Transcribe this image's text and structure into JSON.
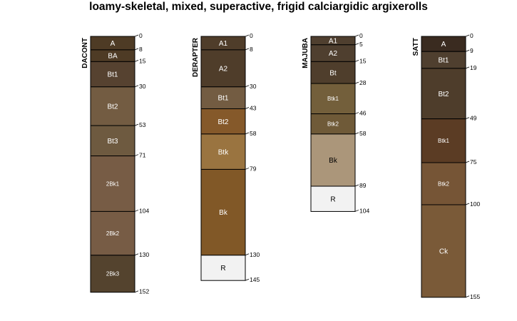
{
  "title": "loamy-skeletal, mixed, superactive, frigid calciargidic argixerolls",
  "profiles": [
    {
      "name": "DACONT",
      "horizons": [
        {
          "name": "A",
          "top": 0,
          "bottom": 8,
          "color": "#4e3b25",
          "label_color": "#ffffff"
        },
        {
          "name": "BA",
          "top": 8,
          "bottom": 15,
          "color": "#4e3b25",
          "label_color": "#ffffff"
        },
        {
          "name": "Bt1",
          "top": 15,
          "bottom": 30,
          "color": "#564230",
          "label_color": "#ffffff"
        },
        {
          "name": "Bt2",
          "top": 30,
          "bottom": 53,
          "color": "#735c42",
          "label_color": "#ffffff"
        },
        {
          "name": "Bt3",
          "top": 53,
          "bottom": 71,
          "color": "#6e5a40",
          "label_color": "#ffffff"
        },
        {
          "name": "2Bk1",
          "top": 71,
          "bottom": 104,
          "color": "#775c45",
          "label_color": "#ffffff"
        },
        {
          "name": "2Bk2",
          "top": 104,
          "bottom": 130,
          "color": "#775c45",
          "label_color": "#ffffff"
        },
        {
          "name": "2Bk3",
          "top": 130,
          "bottom": 152,
          "color": "#54432e",
          "label_color": "#ffffff"
        }
      ],
      "depth_labels": [
        "0",
        "8",
        "15",
        "30",
        "53",
        "71",
        "104",
        "130",
        "152"
      ]
    },
    {
      "name": "DERAPTER",
      "horizons": [
        {
          "name": "A1",
          "top": 0,
          "bottom": 8,
          "color": "#4f3d2a",
          "label_color": "#ffffff"
        },
        {
          "name": "A2",
          "top": 8,
          "bottom": 30,
          "color": "#4f3d2a",
          "label_color": "#ffffff"
        },
        {
          "name": "Bt1",
          "top": 30,
          "bottom": 43,
          "color": "#735c42",
          "label_color": "#ffffff"
        },
        {
          "name": "Bt2",
          "top": 43,
          "bottom": 58,
          "color": "#85592a",
          "label_color": "#ffffff"
        },
        {
          "name": "Btk",
          "top": 58,
          "bottom": 79,
          "color": "#9a7440",
          "label_color": "#ffffff"
        },
        {
          "name": "Bk",
          "top": 79,
          "bottom": 130,
          "color": "#815827",
          "label_color": "#ffffff"
        },
        {
          "name": "R",
          "top": 130,
          "bottom": 145,
          "color": "#f2f2f2",
          "label_color": "#000000"
        }
      ],
      "depth_labels": [
        "0",
        "8",
        "30",
        "43",
        "58",
        "79",
        "130",
        "145"
      ]
    },
    {
      "name": "MAJUBA",
      "horizons": [
        {
          "name": "A1",
          "top": 0,
          "bottom": 5,
          "color": "#4f3f2f",
          "label_color": "#ffffff"
        },
        {
          "name": "A2",
          "top": 5,
          "bottom": 15,
          "color": "#4f3f2f",
          "label_color": "#ffffff"
        },
        {
          "name": "Bt",
          "top": 15,
          "bottom": 28,
          "color": "#4f3e2c",
          "label_color": "#ffffff"
        },
        {
          "name": "Btk1",
          "top": 28,
          "bottom": 46,
          "color": "#735f3b",
          "label_color": "#ffffff"
        },
        {
          "name": "Btk2",
          "top": 46,
          "bottom": 58,
          "color": "#6f5a38",
          "label_color": "#ffffff"
        },
        {
          "name": "Bk",
          "top": 58,
          "bottom": 89,
          "color": "#ab967a",
          "label_color": "#000000"
        },
        {
          "name": "R",
          "top": 89,
          "bottom": 104,
          "color": "#f2f2f2",
          "label_color": "#000000"
        }
      ],
      "depth_labels": [
        "0",
        "5",
        "15",
        "28",
        "46",
        "58",
        "89",
        "104"
      ]
    },
    {
      "name": "SATT",
      "horizons": [
        {
          "name": "A",
          "top": 0,
          "bottom": 9,
          "color": "#3a2b20",
          "label_color": "#ffffff"
        },
        {
          "name": "Bt1",
          "top": 9,
          "bottom": 19,
          "color": "#4f3f2f",
          "label_color": "#ffffff"
        },
        {
          "name": "Bt2",
          "top": 19,
          "bottom": 49,
          "color": "#4e3d2b",
          "label_color": "#ffffff"
        },
        {
          "name": "Btk1",
          "top": 49,
          "bottom": 75,
          "color": "#5b3c24",
          "label_color": "#ffffff"
        },
        {
          "name": "Btk2",
          "top": 75,
          "bottom": 100,
          "color": "#765536",
          "label_color": "#ffffff"
        },
        {
          "name": "Ck",
          "top": 100,
          "bottom": 155,
          "color": "#7a5a38",
          "label_color": "#ffffff"
        }
      ],
      "depth_labels": [
        "0",
        "9",
        "19",
        "49",
        "75",
        "100",
        "155"
      ]
    }
  ]
}
